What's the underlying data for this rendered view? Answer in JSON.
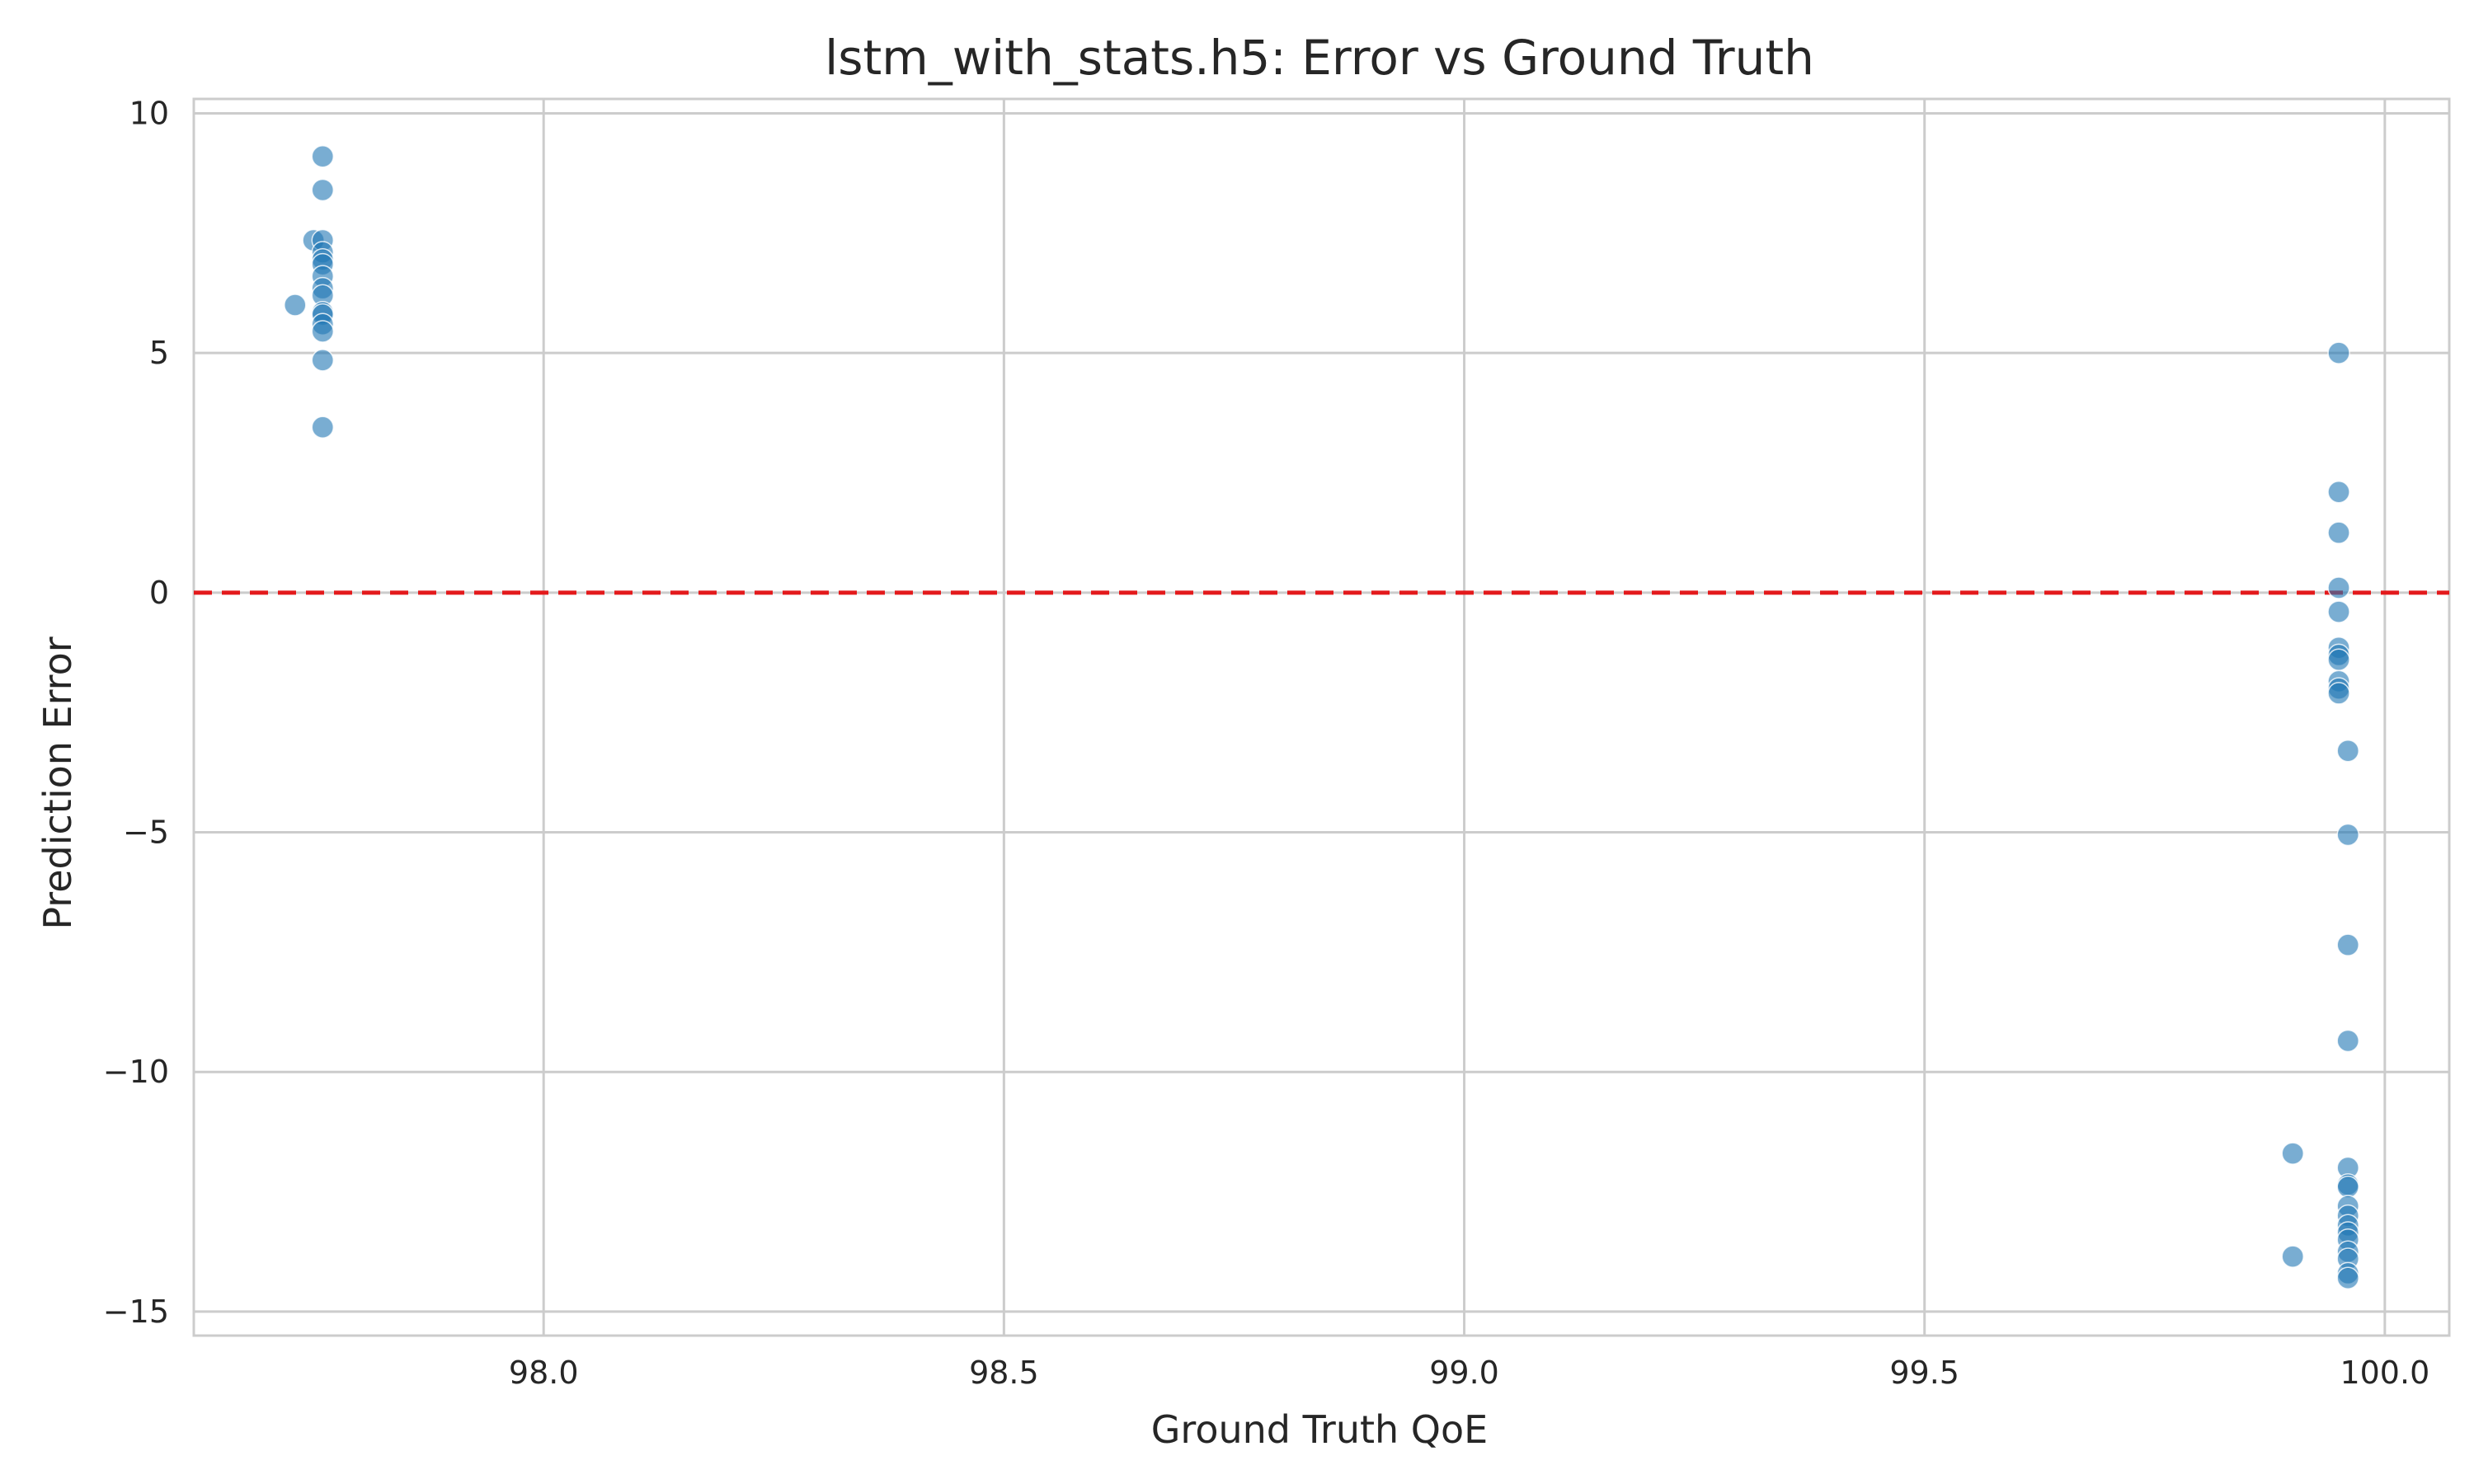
{
  "chart_data": {
    "type": "scatter",
    "title": "lstm_with_stats.h5: Error vs Ground Truth",
    "xlabel": "Ground Truth QoE",
    "ylabel": "Prediction Error",
    "xlim": [
      97.62,
      100.07
    ],
    "ylim": [
      -15.5,
      10.3
    ],
    "xticks": [
      98.0,
      98.5,
      99.0,
      99.5,
      100.0
    ],
    "xtick_labels": [
      "98.0",
      "98.5",
      "99.0",
      "99.5",
      "100.0"
    ],
    "yticks": [
      10,
      5,
      0,
      -5,
      -10,
      -15
    ],
    "ytick_labels": [
      "10",
      "5",
      "0",
      "−5",
      "−10",
      "−15"
    ],
    "grid": true,
    "reference_line": {
      "y": 0,
      "style": "dashed",
      "color": "#e31a1c"
    },
    "point_color": "#1f77b4",
    "points": [
      {
        "x": 97.76,
        "y": 9.1
      },
      {
        "x": 97.76,
        "y": 8.4
      },
      {
        "x": 97.75,
        "y": 7.35
      },
      {
        "x": 97.76,
        "y": 7.35
      },
      {
        "x": 97.76,
        "y": 7.1
      },
      {
        "x": 97.76,
        "y": 6.95
      },
      {
        "x": 97.76,
        "y": 6.85
      },
      {
        "x": 97.76,
        "y": 6.6
      },
      {
        "x": 97.76,
        "y": 6.35
      },
      {
        "x": 97.76,
        "y": 6.2
      },
      {
        "x": 97.73,
        "y": 6.0
      },
      {
        "x": 97.76,
        "y": 5.85
      },
      {
        "x": 97.76,
        "y": 5.8
      },
      {
        "x": 97.76,
        "y": 5.6
      },
      {
        "x": 97.76,
        "y": 5.45
      },
      {
        "x": 97.76,
        "y": 4.85
      },
      {
        "x": 97.76,
        "y": 3.45
      },
      {
        "x": 99.95,
        "y": 5.0
      },
      {
        "x": 99.95,
        "y": 2.1
      },
      {
        "x": 99.95,
        "y": 1.25
      },
      {
        "x": 99.95,
        "y": 0.1
      },
      {
        "x": 99.95,
        "y": -0.4
      },
      {
        "x": 99.95,
        "y": -1.15
      },
      {
        "x": 99.95,
        "y": -1.3
      },
      {
        "x": 99.95,
        "y": -1.4
      },
      {
        "x": 99.95,
        "y": -1.85
      },
      {
        "x": 99.95,
        "y": -2.0
      },
      {
        "x": 99.95,
        "y": -2.1
      },
      {
        "x": 99.96,
        "y": -3.3
      },
      {
        "x": 99.96,
        "y": -5.05
      },
      {
        "x": 99.96,
        "y": -7.35
      },
      {
        "x": 99.96,
        "y": -9.35
      },
      {
        "x": 99.9,
        "y": -11.7
      },
      {
        "x": 99.96,
        "y": -12.0
      },
      {
        "x": 99.96,
        "y": -12.35
      },
      {
        "x": 99.96,
        "y": -12.4
      },
      {
        "x": 99.96,
        "y": -12.8
      },
      {
        "x": 99.96,
        "y": -13.0
      },
      {
        "x": 99.96,
        "y": -13.2
      },
      {
        "x": 99.96,
        "y": -13.35
      },
      {
        "x": 99.96,
        "y": -13.5
      },
      {
        "x": 99.9,
        "y": -13.85
      },
      {
        "x": 99.96,
        "y": -13.75
      },
      {
        "x": 99.96,
        "y": -13.9
      },
      {
        "x": 99.96,
        "y": -14.2
      },
      {
        "x": 99.96,
        "y": -14.3
      }
    ]
  }
}
